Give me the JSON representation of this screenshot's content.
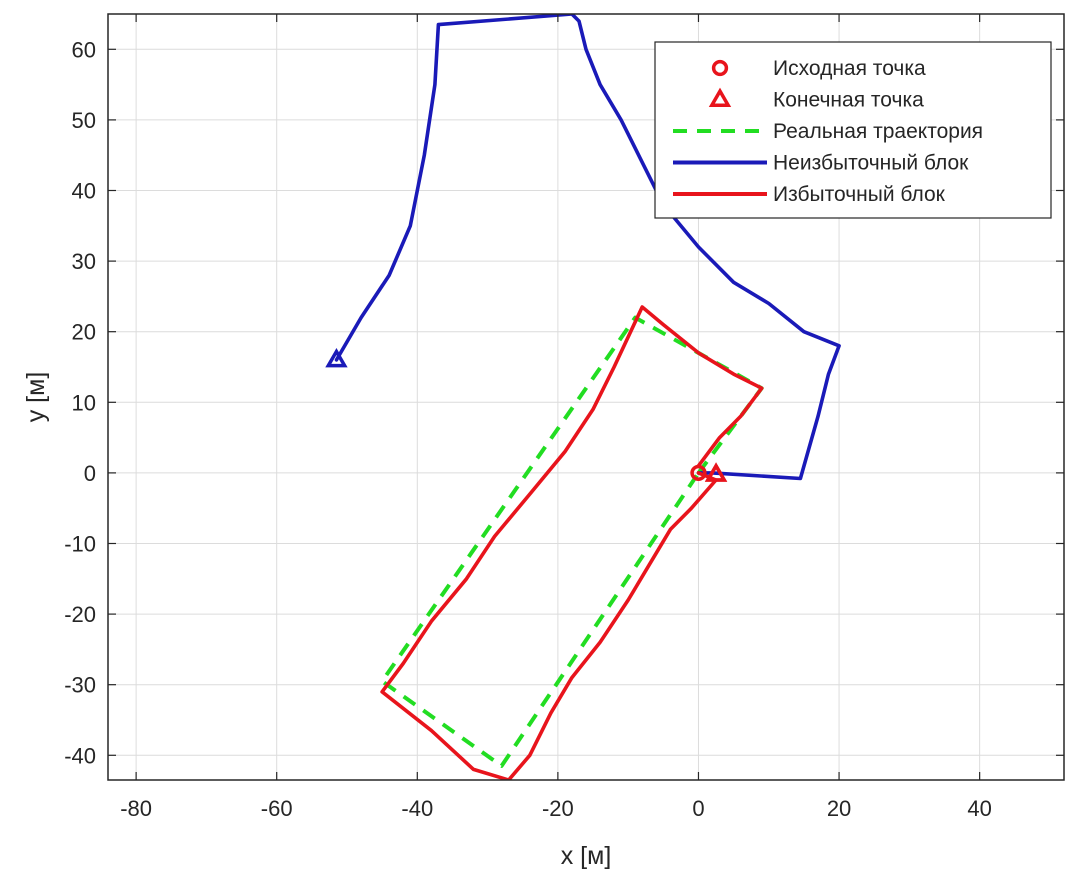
{
  "chart_data": {
    "type": "line",
    "xlabel": "x [м]",
    "ylabel": "y [м]",
    "xlim": [
      -84,
      52
    ],
    "ylim": [
      -43.5,
      65
    ],
    "xticks": [
      -80,
      -60,
      -40,
      -20,
      0,
      20,
      40
    ],
    "yticks": [
      -40,
      -30,
      -20,
      -10,
      0,
      10,
      20,
      30,
      40,
      50,
      60
    ],
    "xtick_labels": [
      "-80",
      "-60",
      "-40",
      "-20",
      "0",
      "20",
      "40"
    ],
    "ytick_labels": [
      "-40",
      "-30",
      "-20",
      "-10",
      "0",
      "10",
      "20",
      "30",
      "40",
      "50",
      "60"
    ],
    "grid": true,
    "legend_position": "top-right",
    "series": [
      {
        "name": "Исходная точка",
        "kind": "marker",
        "marker": "circle",
        "color": "#e8141c",
        "points": [
          [
            0,
            0
          ]
        ]
      },
      {
        "name": "Конечная точка",
        "kind": "marker",
        "marker": "triangle",
        "color": "#e8141c",
        "points": [
          [
            2.5,
            -0.2
          ]
        ]
      },
      {
        "name": "Реальная траектория",
        "kind": "line",
        "style": "dashed",
        "color": "#22dd22",
        "points": [
          [
            0,
            0
          ],
          [
            9,
            12
          ],
          [
            -9,
            22
          ],
          [
            -45,
            -29.5
          ],
          [
            -28,
            -41.5
          ],
          [
            0,
            0
          ]
        ]
      },
      {
        "name": "Неизбыточный блок",
        "kind": "line",
        "style": "solid",
        "color": "#1a1ab8",
        "points": [
          [
            0,
            0
          ],
          [
            2,
            0
          ],
          [
            14.5,
            -0.8
          ],
          [
            17,
            8
          ],
          [
            18.5,
            14
          ],
          [
            20,
            18
          ],
          [
            15,
            20
          ],
          [
            10,
            24
          ],
          [
            5,
            27
          ],
          [
            0,
            32
          ],
          [
            -5,
            38
          ],
          [
            -8,
            44
          ],
          [
            -11,
            50
          ],
          [
            -14,
            55
          ],
          [
            -16,
            60
          ],
          [
            -17,
            64
          ],
          [
            -18,
            65
          ],
          [
            -37,
            63.5
          ],
          [
            -37.5,
            55
          ],
          [
            -39,
            45
          ],
          [
            -41,
            35
          ],
          [
            -44,
            28
          ],
          [
            -48,
            22
          ],
          [
            -51.5,
            16
          ]
        ],
        "end_marker": [
          -51.5,
          16
        ]
      },
      {
        "name": "Избыточный блок",
        "kind": "line",
        "style": "solid",
        "color": "#e8141c",
        "points": [
          [
            0,
            0
          ],
          [
            2.5,
            -1
          ],
          [
            -1,
            -5
          ],
          [
            -4,
            -8
          ],
          [
            -7,
            -13
          ],
          [
            -10,
            -18
          ],
          [
            -14,
            -24
          ],
          [
            -18,
            -29
          ],
          [
            -21,
            -34
          ],
          [
            -24,
            -40
          ],
          [
            -27,
            -43.5
          ],
          [
            -32,
            -42
          ],
          [
            -38,
            -36.5
          ],
          [
            -45,
            -31
          ],
          [
            -42,
            -27
          ],
          [
            -38,
            -21
          ],
          [
            -33,
            -15
          ],
          [
            -29,
            -9
          ],
          [
            -24,
            -3
          ],
          [
            -19,
            3
          ],
          [
            -15,
            9
          ],
          [
            -12,
            15
          ],
          [
            -8,
            23.5
          ],
          [
            -5,
            21
          ],
          [
            0,
            17
          ],
          [
            5,
            14
          ],
          [
            9,
            12
          ],
          [
            6,
            8
          ],
          [
            3,
            5
          ],
          [
            0,
            1
          ]
        ],
        "end_marker": [
          2.5,
          -0.2
        ]
      }
    ]
  }
}
